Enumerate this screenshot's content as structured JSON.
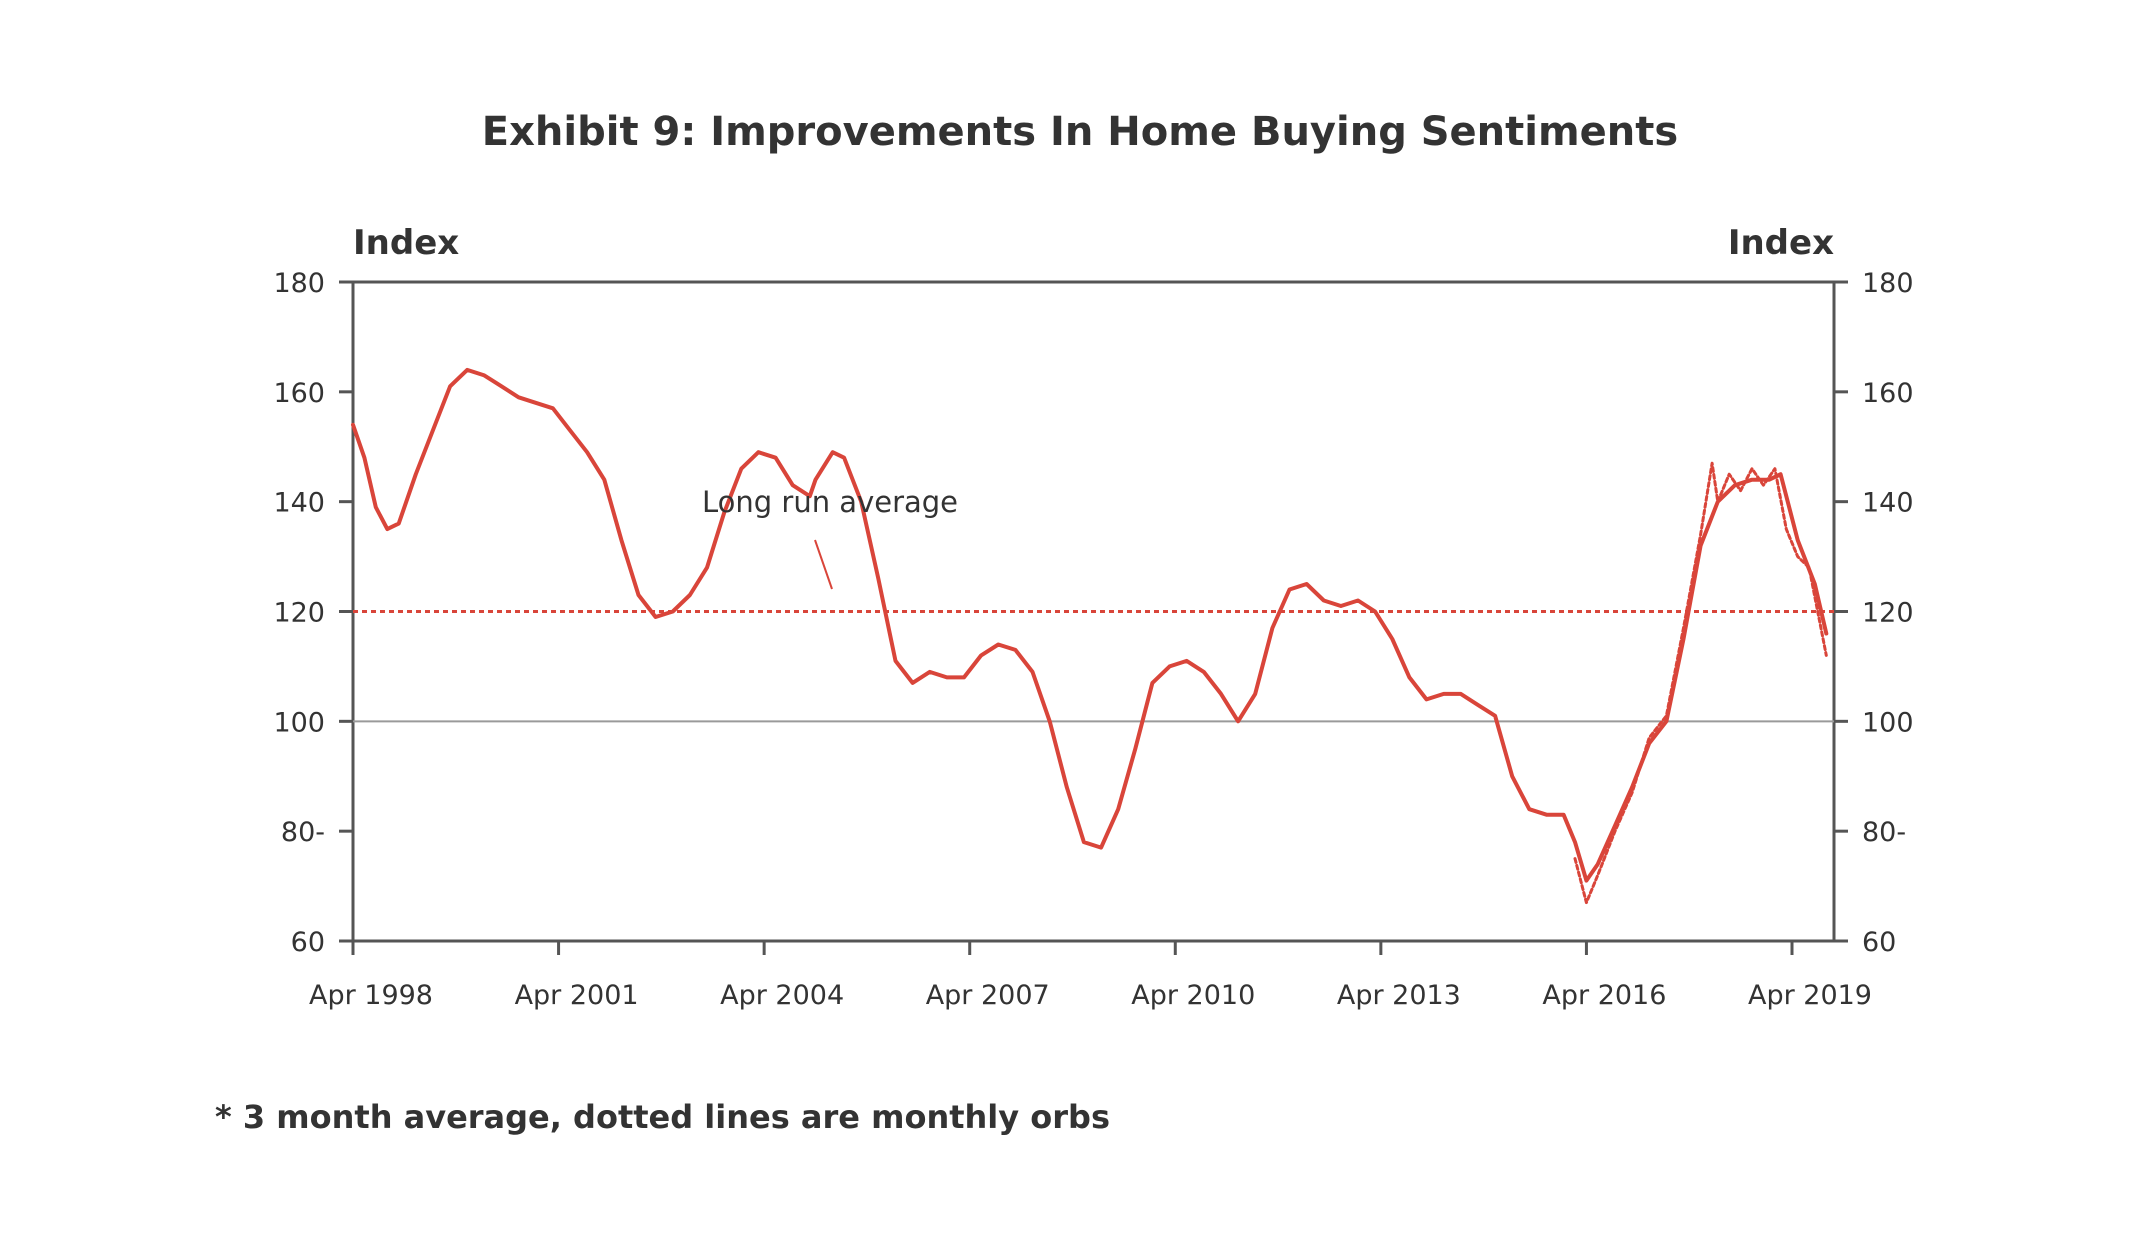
{
  "chart_data": {
    "type": "line",
    "title": "Exhibit 9: Improvements In Home Buying Sentiments",
    "ylabel_left": "Index",
    "ylabel_right": "Index",
    "ylim": [
      60,
      180
    ],
    "y_ticks_left": [
      "180",
      "160",
      "140",
      "120",
      "100",
      "80-",
      "60"
    ],
    "y_ticks_right": [
      "180",
      "160",
      "140",
      "120",
      "100",
      "80-",
      "60"
    ],
    "x_ticks": [
      "Apr 1998",
      "Apr 2001",
      "Apr 2004",
      "Apr 2007",
      "Apr 2010",
      "Apr 2013",
      "Apr 2016",
      "Apr 2019"
    ],
    "xlim": [
      "1998-04",
      "2019-10"
    ],
    "grid": false,
    "reference_lines": [
      {
        "value": 120,
        "style": "dotted",
        "color": "#d9453a"
      },
      {
        "value": 100,
        "style": "solid",
        "color": "#9a9a9a"
      }
    ],
    "annotation": "Long run average",
    "footnote": "* 3 month average, dotted lines are monthly orbs",
    "series": [
      {
        "style": "solid",
        "color": "#d9453a",
        "points": [
          [
            "1998-04",
            154
          ],
          [
            "1998-06",
            148
          ],
          [
            "1998-08",
            139
          ],
          [
            "1998-10",
            135
          ],
          [
            "1998-12",
            136
          ],
          [
            "1999-03",
            145
          ],
          [
            "1999-06",
            153
          ],
          [
            "1999-09",
            161
          ],
          [
            "1999-12",
            164
          ],
          [
            "2000-03",
            163
          ],
          [
            "2000-06",
            161
          ],
          [
            "2000-09",
            159
          ],
          [
            "2000-12",
            158
          ],
          [
            "2001-03",
            157
          ],
          [
            "2001-06",
            153
          ],
          [
            "2001-09",
            149
          ],
          [
            "2001-12",
            144
          ],
          [
            "2002-03",
            133
          ],
          [
            "2002-06",
            123
          ],
          [
            "2002-09",
            119
          ],
          [
            "2002-12",
            120
          ],
          [
            "2003-03",
            123
          ],
          [
            "2003-06",
            128
          ],
          [
            "2003-09",
            138
          ],
          [
            "2003-12",
            146
          ],
          [
            "2004-03",
            149
          ],
          [
            "2004-06",
            148
          ],
          [
            "2004-09",
            143
          ],
          [
            "2004-12",
            141
          ],
          [
            "2005-01",
            144
          ],
          [
            "2005-04",
            149
          ],
          [
            "2005-06",
            148
          ],
          [
            "2005-09",
            140
          ],
          [
            "2005-12",
            126
          ],
          [
            "2006-03",
            111
          ],
          [
            "2006-06",
            107
          ],
          [
            "2006-09",
            109
          ],
          [
            "2006-12",
            108
          ],
          [
            "2007-03",
            108
          ],
          [
            "2007-06",
            112
          ],
          [
            "2007-09",
            114
          ],
          [
            "2007-12",
            113
          ],
          [
            "2008-03",
            109
          ],
          [
            "2008-06",
            100
          ],
          [
            "2008-09",
            88
          ],
          [
            "2008-12",
            78
          ],
          [
            "2009-03",
            77
          ],
          [
            "2009-06",
            84
          ],
          [
            "2009-09",
            95
          ],
          [
            "2009-12",
            107
          ],
          [
            "2010-03",
            110
          ],
          [
            "2010-06",
            111
          ],
          [
            "2010-09",
            109
          ],
          [
            "2010-12",
            105
          ],
          [
            "2011-03",
            100
          ],
          [
            "2011-06",
            105
          ],
          [
            "2011-09",
            117
          ],
          [
            "2011-12",
            124
          ],
          [
            "2012-03",
            125
          ],
          [
            "2012-06",
            122
          ],
          [
            "2012-09",
            121
          ],
          [
            "2012-12",
            122
          ],
          [
            "2013-03",
            120
          ],
          [
            "2013-06",
            115
          ],
          [
            "2013-09",
            108
          ],
          [
            "2013-12",
            104
          ],
          [
            "2014-03",
            105
          ],
          [
            "2014-06",
            105
          ],
          [
            "2014-09",
            103
          ],
          [
            "2014-12",
            101
          ],
          [
            "2015-03",
            90
          ],
          [
            "2015-06",
            84
          ],
          [
            "2015-09",
            83
          ],
          [
            "2015-12",
            83
          ],
          [
            "2016-02",
            78
          ],
          [
            "2016-04",
            71
          ],
          [
            "2016-06",
            74
          ],
          [
            "2016-09",
            81
          ],
          [
            "2016-12",
            88
          ],
          [
            "2017-03",
            96
          ],
          [
            "2017-06",
            100
          ],
          [
            "2017-09",
            115
          ],
          [
            "2017-12",
            132
          ],
          [
            "2018-03",
            140
          ],
          [
            "2018-06",
            143
          ],
          [
            "2018-09",
            144
          ],
          [
            "2018-12",
            144
          ],
          [
            "2019-02",
            145
          ],
          [
            "2019-05",
            133
          ],
          [
            "2019-08",
            125
          ],
          [
            "2019-10",
            116
          ]
        ]
      },
      {
        "style": "dotted",
        "color": "#d9453a",
        "points": [
          [
            "2016-02",
            75
          ],
          [
            "2016-04",
            67
          ],
          [
            "2016-06",
            72
          ],
          [
            "2016-09",
            80
          ],
          [
            "2016-12",
            87
          ],
          [
            "2017-03",
            97
          ],
          [
            "2017-06",
            101
          ],
          [
            "2017-09",
            117
          ],
          [
            "2017-12",
            134
          ],
          [
            "2018-02",
            147
          ],
          [
            "2018-03",
            140
          ],
          [
            "2018-05",
            145
          ],
          [
            "2018-07",
            142
          ],
          [
            "2018-09",
            146
          ],
          [
            "2018-11",
            143
          ],
          [
            "2019-01",
            146
          ],
          [
            "2019-03",
            135
          ],
          [
            "2019-05",
            130
          ],
          [
            "2019-07",
            128
          ],
          [
            "2019-10",
            112
          ]
        ]
      }
    ]
  }
}
